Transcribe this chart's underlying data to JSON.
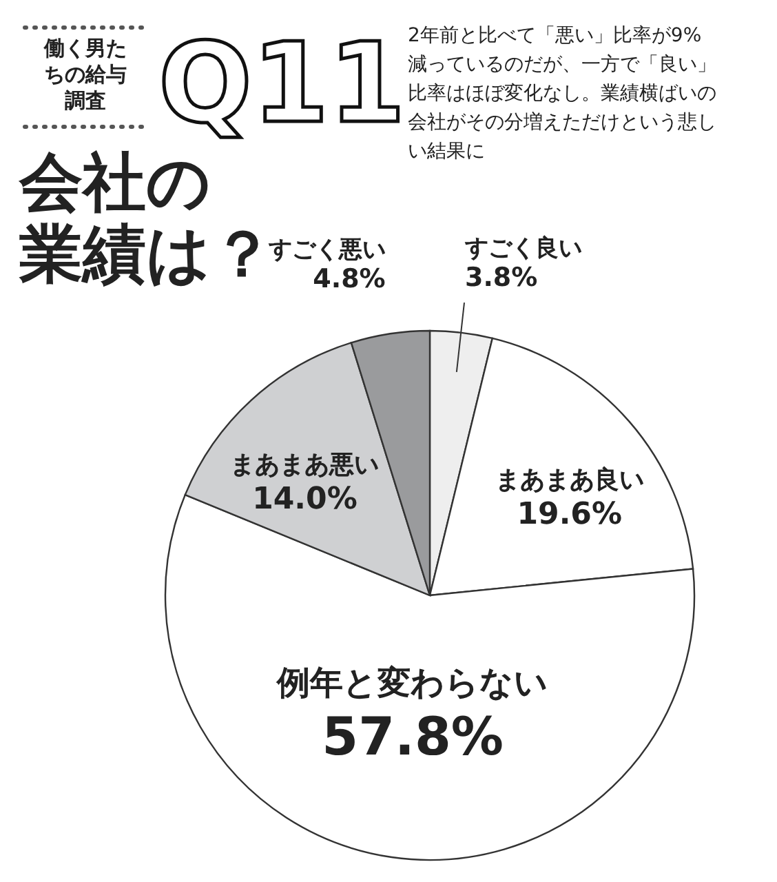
{
  "chart_data": {
    "type": "pie",
    "title": "会社の業績は？",
    "subtitle": "2年前と比べて「悪い」比率が9%減っているのだが、一方で「良い」比率はほぼ変化なし。業績横ばいの会社がその分増えただけという悲しい結果に",
    "annotations": [
      "働く男たちの給与調査",
      "Q11"
    ],
    "categories": [
      "すごく良い",
      "まあまあ良い",
      "例年と変わらない",
      "まあまあ悪い",
      "すごく悪い"
    ],
    "values": [
      3.8,
      19.6,
      57.8,
      14.0,
      4.8
    ],
    "value_labels": [
      "3.8%",
      "19.6%",
      "57.8%",
      "14.0%",
      "4.8%"
    ],
    "colors": [
      "#eeeeee",
      "#ffffff",
      "#ffffff",
      "#cfd0d2",
      "#9a9b9d"
    ]
  }
}
